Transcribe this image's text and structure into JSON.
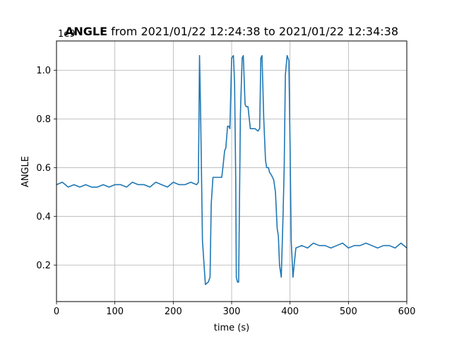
{
  "chart_data": {
    "type": "line",
    "title_bold": "ANGLE",
    "title_rest": " from 2021/01/22 12:24:38 to 2021/01/22 12:34:38",
    "xlabel": "time (s)",
    "ylabel": "ANGLE",
    "y_offset_text": "1e9",
    "xlim": [
      0,
      600
    ],
    "ylim": [
      0.05,
      1.12
    ],
    "xticks": [
      0,
      100,
      200,
      300,
      400,
      500,
      600
    ],
    "xtick_labels": [
      "0",
      "100",
      "200",
      "300",
      "400",
      "500",
      "600"
    ],
    "yticks": [
      0.2,
      0.4,
      0.6,
      0.8,
      1.0
    ],
    "ytick_labels": [
      "0.2",
      "0.4",
      "0.6",
      "0.8",
      "1.0"
    ],
    "grid": true,
    "line_color": "#1f77b4",
    "series": [
      {
        "x": [
          0,
          10,
          20,
          30,
          40,
          50,
          60,
          70,
          80,
          90,
          100,
          110,
          120,
          130,
          140,
          150,
          160,
          170,
          180,
          190,
          200,
          210,
          220,
          230,
          240,
          243,
          245,
          247,
          250,
          255,
          260,
          263,
          265,
          268,
          272,
          275,
          278,
          280,
          283,
          285,
          288,
          290,
          293,
          295,
          297,
          300,
          303,
          305,
          307,
          308,
          310,
          312,
          315,
          318,
          320,
          323,
          325,
          328,
          332,
          335,
          338,
          340,
          345,
          348,
          350,
          352,
          355,
          358,
          360,
          363,
          365,
          368,
          372,
          375,
          378,
          380,
          382,
          385,
          388,
          390,
          392,
          395,
          398,
          400,
          402,
          405,
          410,
          420,
          430,
          440,
          450,
          460,
          470,
          480,
          490,
          500,
          510,
          520,
          530,
          540,
          550,
          560,
          570,
          580,
          590,
          600
        ],
        "y": [
          0.53,
          0.54,
          0.52,
          0.53,
          0.52,
          0.53,
          0.52,
          0.52,
          0.53,
          0.52,
          0.53,
          0.53,
          0.52,
          0.54,
          0.53,
          0.53,
          0.52,
          0.54,
          0.53,
          0.52,
          0.54,
          0.53,
          0.53,
          0.54,
          0.53,
          0.54,
          1.06,
          0.8,
          0.3,
          0.12,
          0.13,
          0.15,
          0.45,
          0.56,
          0.56,
          0.56,
          0.56,
          0.56,
          0.56,
          0.6,
          0.67,
          0.68,
          0.77,
          0.77,
          0.76,
          1.05,
          1.06,
          0.95,
          0.55,
          0.15,
          0.13,
          0.13,
          0.82,
          1.05,
          1.06,
          0.86,
          0.85,
          0.85,
          0.76,
          0.76,
          0.76,
          0.76,
          0.75,
          0.76,
          1.05,
          1.06,
          0.8,
          0.63,
          0.6,
          0.6,
          0.58,
          0.57,
          0.55,
          0.5,
          0.35,
          0.32,
          0.2,
          0.15,
          0.4,
          0.6,
          0.98,
          1.06,
          1.04,
          0.7,
          0.3,
          0.15,
          0.27,
          0.28,
          0.27,
          0.29,
          0.28,
          0.28,
          0.27,
          0.28,
          0.29,
          0.27,
          0.28,
          0.28,
          0.29,
          0.28,
          0.27,
          0.28,
          0.28,
          0.27,
          0.29,
          0.27
        ]
      }
    ]
  }
}
